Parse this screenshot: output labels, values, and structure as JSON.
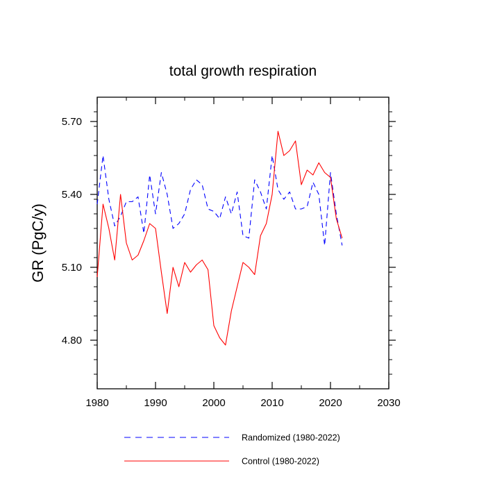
{
  "chart_data": {
    "type": "line",
    "title": "total growth respiration",
    "xlabel": "",
    "ylabel": "GR  (PgC/y)",
    "xlim": [
      1980,
      2030
    ],
    "ylim": [
      4.6,
      5.8
    ],
    "x_ticks": [
      1980,
      1990,
      2000,
      2010,
      2020,
      2030
    ],
    "x_tick_labels": [
      "1980",
      "1990",
      "2000",
      "2010",
      "2020",
      "2030"
    ],
    "y_ticks": [
      4.8,
      5.1,
      5.4,
      5.7
    ],
    "y_tick_labels": [
      "4.80",
      "5.10",
      "5.40",
      "5.70"
    ],
    "legend_placement": "bottom",
    "series": [
      {
        "name": "Randomized (1980-2022)",
        "color": "#0000ff",
        "line_style": "dashed",
        "x": [
          1980,
          1981,
          1982,
          1983,
          1984,
          1985,
          1986,
          1987,
          1988,
          1989,
          1990,
          1991,
          1992,
          1993,
          1994,
          1995,
          1996,
          1997,
          1998,
          1999,
          2000,
          2001,
          2002,
          2003,
          2004,
          2005,
          2006,
          2007,
          2008,
          2009,
          2010,
          2011,
          2012,
          2013,
          2014,
          2015,
          2016,
          2017,
          2018,
          2019,
          2020,
          2021,
          2022
        ],
        "values": [
          5.36,
          5.56,
          5.38,
          5.27,
          5.31,
          5.37,
          5.37,
          5.39,
          5.24,
          5.48,
          5.32,
          5.49,
          5.4,
          5.26,
          5.28,
          5.32,
          5.42,
          5.46,
          5.44,
          5.34,
          5.33,
          5.3,
          5.39,
          5.32,
          5.41,
          5.23,
          5.22,
          5.46,
          5.41,
          5.34,
          5.56,
          5.42,
          5.38,
          5.41,
          5.34,
          5.34,
          5.35,
          5.45,
          5.4,
          5.19,
          5.49,
          5.32,
          5.19
        ]
      },
      {
        "name": "Control (1980-2022)",
        "color": "#ff0000",
        "line_style": "solid",
        "x": [
          1980,
          1981,
          1982,
          1983,
          1984,
          1985,
          1986,
          1987,
          1988,
          1989,
          1990,
          1991,
          1992,
          1993,
          1994,
          1995,
          1996,
          1997,
          1998,
          1999,
          2000,
          2001,
          2002,
          2003,
          2004,
          2005,
          2006,
          2007,
          2008,
          2009,
          2010,
          2011,
          2012,
          2013,
          2014,
          2015,
          2016,
          2017,
          2018,
          2019,
          2020,
          2021,
          2022
        ],
        "values": [
          5.06,
          5.36,
          5.26,
          5.13,
          5.4,
          5.2,
          5.13,
          5.15,
          5.21,
          5.28,
          5.26,
          5.08,
          4.91,
          5.1,
          5.02,
          5.12,
          5.08,
          5.11,
          5.13,
          5.09,
          4.86,
          4.81,
          4.78,
          4.92,
          5.02,
          5.12,
          5.1,
          5.07,
          5.23,
          5.28,
          5.4,
          5.66,
          5.56,
          5.58,
          5.62,
          5.44,
          5.5,
          5.48,
          5.53,
          5.49,
          5.47,
          5.3,
          5.22
        ]
      }
    ]
  }
}
